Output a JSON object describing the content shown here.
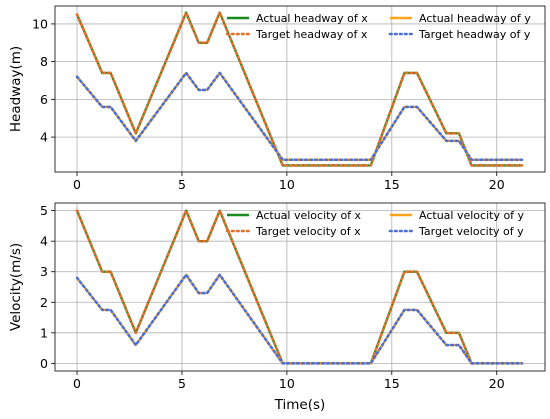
{
  "chart_data": [
    {
      "type": "line",
      "title": "",
      "xlabel": "",
      "ylabel": "Headway(m)",
      "xlim": [
        -1.05,
        22.3
      ],
      "ylim": [
        2.15,
        10.95
      ],
      "xticks": [
        0,
        5,
        10,
        15,
        20
      ],
      "yticks": [
        4,
        6,
        8,
        10
      ],
      "grid": true,
      "legend": {
        "placement": "top-right",
        "columns": 2
      },
      "series": [
        {
          "name": "Actual headway of x",
          "color": "#1a8a1a",
          "style": "solid",
          "x": [
            0,
            1.2,
            1.6,
            2.8,
            5.2,
            5.8,
            6.2,
            6.8,
            9.8,
            14.0,
            15.6,
            16.2,
            17.6,
            18.2,
            18.8,
            21.2
          ],
          "y": [
            10.5,
            7.4,
            7.4,
            4.2,
            10.6,
            9.0,
            9.0,
            10.6,
            2.5,
            2.5,
            7.4,
            7.4,
            4.2,
            4.2,
            2.5,
            2.5
          ]
        },
        {
          "name": "Target headway of x",
          "color": "#e3702a",
          "style": "dotted",
          "x": [
            0,
            1.2,
            1.6,
            2.8,
            5.2,
            5.8,
            6.2,
            6.8,
            9.8,
            14.0,
            15.6,
            16.2,
            17.6,
            18.2,
            18.8,
            21.2
          ],
          "y": [
            10.5,
            7.4,
            7.4,
            4.2,
            10.6,
            9.0,
            9.0,
            10.6,
            2.5,
            2.5,
            7.4,
            7.4,
            4.2,
            4.2,
            2.5,
            2.5
          ]
        },
        {
          "name": "Actual headway of y",
          "color": "#ffa31a",
          "style": "solid",
          "x": [
            0,
            1.2,
            1.6,
            2.8,
            5.2,
            5.8,
            6.2,
            6.8,
            9.8,
            14.0,
            15.6,
            16.2,
            17.6,
            18.2,
            18.8,
            21.2
          ],
          "y": [
            7.2,
            5.6,
            5.6,
            3.8,
            7.4,
            6.5,
            6.5,
            7.4,
            2.8,
            2.8,
            5.6,
            5.6,
            3.8,
            3.8,
            2.8,
            2.8
          ]
        },
        {
          "name": "Target headway of y",
          "color": "#4a6fd6",
          "style": "dotted",
          "x": [
            0,
            1.2,
            1.6,
            2.8,
            5.2,
            5.8,
            6.2,
            6.8,
            9.8,
            14.0,
            15.6,
            16.2,
            17.6,
            18.2,
            18.8,
            21.2
          ],
          "y": [
            7.2,
            5.6,
            5.6,
            3.8,
            7.4,
            6.5,
            6.5,
            7.4,
            2.8,
            2.8,
            5.6,
            5.6,
            3.8,
            3.8,
            2.8,
            2.8
          ]
        }
      ]
    },
    {
      "type": "line",
      "title": "",
      "xlabel": "Time(s)",
      "ylabel": "Velocity(m/s)",
      "xlim": [
        -1.05,
        22.3
      ],
      "ylim": [
        -0.25,
        5.25
      ],
      "xticks": [
        0,
        5,
        10,
        15,
        20
      ],
      "yticks": [
        0,
        1,
        2,
        3,
        4,
        5
      ],
      "grid": true,
      "legend": {
        "placement": "top-right",
        "columns": 2
      },
      "series": [
        {
          "name": "Actual velocity of x",
          "color": "#1a8a1a",
          "style": "solid",
          "x": [
            0,
            1.2,
            1.6,
            2.8,
            5.2,
            5.8,
            6.2,
            6.8,
            9.8,
            14.0,
            15.6,
            16.2,
            17.6,
            18.2,
            18.8,
            21.2
          ],
          "y": [
            5.0,
            3.0,
            3.0,
            1.0,
            5.0,
            4.0,
            4.0,
            5.0,
            0,
            0,
            3.0,
            3.0,
            1.0,
            1.0,
            0,
            0
          ]
        },
        {
          "name": "Target velocity of x",
          "color": "#e3702a",
          "style": "dotted",
          "x": [
            0,
            1.2,
            1.6,
            2.8,
            5.2,
            5.8,
            6.2,
            6.8,
            9.8,
            14.0,
            15.6,
            16.2,
            17.6,
            18.2,
            18.8,
            21.2
          ],
          "y": [
            5.0,
            3.0,
            3.0,
            1.0,
            5.0,
            4.0,
            4.0,
            5.0,
            0,
            0,
            3.0,
            3.0,
            1.0,
            1.0,
            0,
            0
          ]
        },
        {
          "name": "Actual velocity of y",
          "color": "#ffa31a",
          "style": "solid",
          "x": [
            0,
            1.2,
            1.6,
            2.8,
            5.2,
            5.8,
            6.2,
            6.8,
            9.8,
            14.0,
            15.6,
            16.2,
            17.6,
            18.2,
            18.8,
            21.2
          ],
          "y": [
            2.8,
            1.75,
            1.75,
            0.6,
            2.9,
            2.3,
            2.3,
            2.9,
            0,
            0,
            1.75,
            1.75,
            0.6,
            0.6,
            0,
            0
          ]
        },
        {
          "name": "Target velocity of y",
          "color": "#4a6fd6",
          "style": "dotted",
          "x": [
            0,
            1.2,
            1.6,
            2.8,
            5.2,
            5.8,
            6.2,
            6.8,
            9.8,
            14.0,
            15.6,
            16.2,
            17.6,
            18.2,
            18.8,
            21.2
          ],
          "y": [
            2.8,
            1.75,
            1.75,
            0.6,
            2.9,
            2.3,
            2.3,
            2.9,
            0,
            0,
            1.75,
            1.75,
            0.6,
            0.6,
            0,
            0
          ]
        }
      ]
    }
  ]
}
